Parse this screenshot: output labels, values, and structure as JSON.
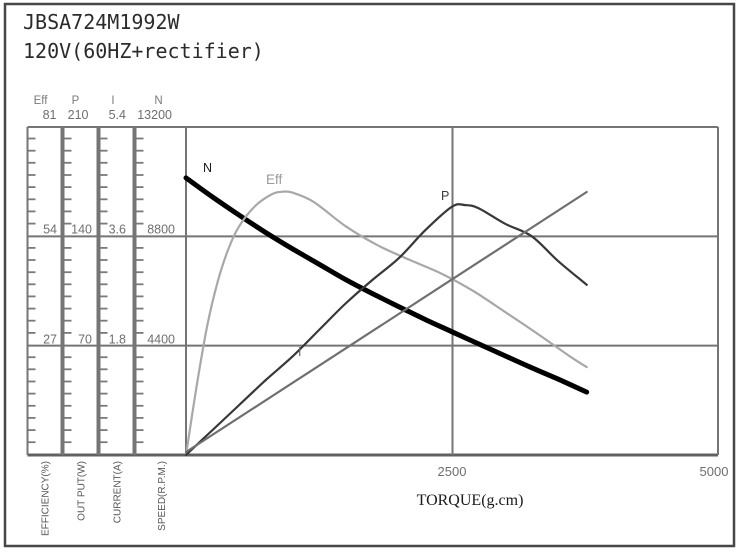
{
  "window": {
    "bg": "#ffffff",
    "border_color": "#474747"
  },
  "title": {
    "line1": "JBSA724M1992W",
    "line2": "120V(60HZ+rectifier)"
  },
  "left_axes": [
    {
      "symbol": "Eff",
      "max": "81",
      "mid": "54",
      "low": "27",
      "name": "EFFICIENCY(%)"
    },
    {
      "symbol": "P",
      "max": "210",
      "mid": "140",
      "low": "70",
      "name": "OUT PUT(W)"
    },
    {
      "symbol": "I",
      "max": "5.4",
      "mid": "3.6",
      "low": "1.8",
      "name": "CURRENT(A)"
    },
    {
      "symbol": "N",
      "max": "13200",
      "mid": "8800",
      "low": "4400",
      "name": "SPEED(R.P.M.)"
    }
  ],
  "x_axis": {
    "label": "TORQUE(g.cm)",
    "ticks": [
      "2500",
      "5000"
    ]
  },
  "chart_data": {
    "type": "line",
    "title": "JBSA724M1992W 120V(60HZ+rectifier) motor performance curves",
    "xlabel": "TORQUE(g.cm)",
    "xlim": [
      0,
      5000
    ],
    "x_gridline": 2500,
    "grid": "on",
    "axes": [
      {
        "id": "Eff",
        "label": "EFFICIENCY(%)",
        "max": 81,
        "ticks": [
          27,
          54,
          81
        ]
      },
      {
        "id": "P",
        "label": "OUT PUT(W)",
        "max": 210,
        "ticks": [
          70,
          140,
          210
        ]
      },
      {
        "id": "I",
        "label": "CURRENT(A)",
        "max": 5.4,
        "ticks": [
          1.8,
          3.6,
          5.4
        ]
      },
      {
        "id": "N",
        "label": "SPEED(R.P.M.)",
        "max": 13200,
        "ticks": [
          4400,
          8800,
          13200
        ]
      }
    ],
    "series": [
      {
        "name": "N",
        "axis": "N",
        "axis_max": 13200,
        "color": "#000000",
        "width": 5,
        "label_color": "#1a1a1a",
        "label_size": 12.5,
        "label_pos": [
          203,
          172
        ],
        "x": [
          0,
          250,
          500,
          750,
          1000,
          1250,
          1500,
          1750,
          2000,
          2250,
          2500,
          2750,
          3000,
          3250,
          3500,
          3766
        ],
        "values": [
          11150,
          10380,
          9650,
          8950,
          8300,
          7680,
          7060,
          6500,
          5970,
          5450,
          4960,
          4470,
          3990,
          3510,
          3050,
          2530
        ]
      },
      {
        "name": "Eff",
        "axis": "Eff",
        "axis_max": 81,
        "color": "#a8a8a8",
        "width": 2.2,
        "label_color": "#9a9a9a",
        "label_size": 13.5,
        "label_pos": [
          266,
          184
        ],
        "x": [
          0,
          100,
          200,
          300,
          400,
          500,
          650,
          800,
          900,
          1000,
          1200,
          1500,
          1800,
          2100,
          2400,
          2700,
          3000,
          3300,
          3600,
          3766
        ],
        "values": [
          0,
          17,
          32,
          43,
          51,
          56.5,
          61.5,
          64.3,
          65,
          64.8,
          62.5,
          56.5,
          51.8,
          48.2,
          44.8,
          40.5,
          35.3,
          30,
          24.5,
          21.7
        ]
      },
      {
        "name": "P",
        "axis": "P",
        "axis_max": 210,
        "color": "#383838",
        "width": 2.2,
        "label_color": "#3a3a3a",
        "label_size": 12.5,
        "label_pos": [
          441,
          200
        ],
        "x": [
          0,
          250,
          500,
          750,
          1000,
          1250,
          1500,
          1750,
          2000,
          2250,
          2500,
          2625,
          2750,
          3000,
          3250,
          3500,
          3766
        ],
        "values": [
          0,
          16,
          32,
          48,
          63,
          80,
          97,
          112,
          126,
          144,
          159,
          160,
          158,
          148,
          140,
          124,
          109
        ]
      },
      {
        "name": "I",
        "axis": "I",
        "axis_max": 5.4,
        "color": "#6f6f6f",
        "width": 2.2,
        "label_color": "#666666",
        "label_size": 12.5,
        "label_pos": [
          298,
          356
        ],
        "x": [
          0,
          1883,
          3766
        ],
        "values": [
          0.05,
          2.19,
          4.33
        ]
      }
    ]
  }
}
